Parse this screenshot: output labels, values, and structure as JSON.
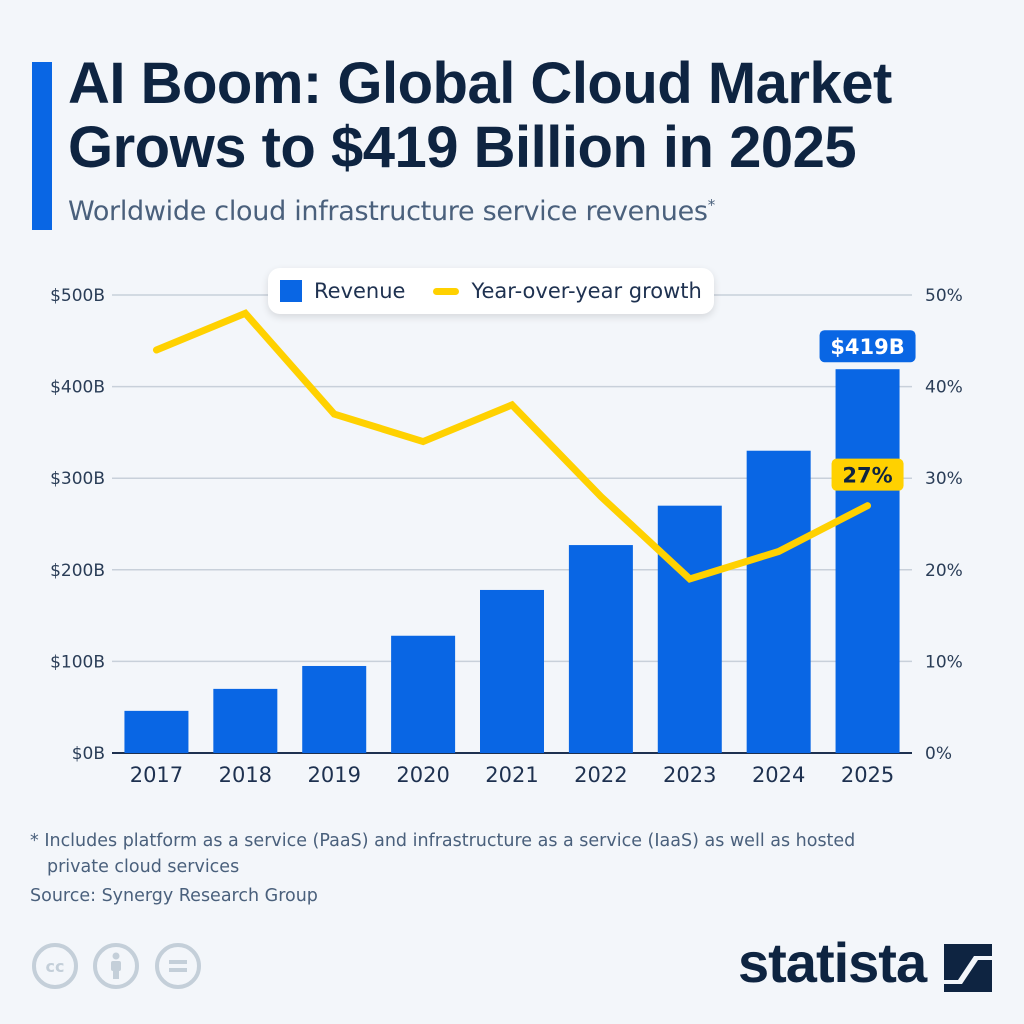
{
  "header": {
    "title_line1": "AI Boom: Global Cloud Market",
    "title_line2": "Grows to $419 Billion in 2025",
    "subtitle": "Worldwide cloud infrastructure service revenues",
    "subtitle_mark": "*"
  },
  "chart_data": {
    "type": "bar+line",
    "categories": [
      "2017",
      "2018",
      "2019",
      "2020",
      "2021",
      "2022",
      "2023",
      "2024",
      "2025"
    ],
    "series": [
      {
        "name": "Revenue",
        "type": "bar",
        "axis": "left",
        "unit": "$B",
        "color": "#0966e4",
        "values": [
          46,
          70,
          95,
          128,
          178,
          227,
          270,
          330,
          419
        ]
      },
      {
        "name": "Year-over-year growth",
        "type": "line",
        "axis": "right",
        "unit": "%",
        "color": "#ffd100",
        "values": [
          44,
          48,
          37,
          34,
          38,
          28,
          19,
          22,
          27
        ]
      }
    ],
    "left_axis": {
      "ylim": [
        0,
        500
      ],
      "ticks": [
        "$0B",
        "$100B",
        "$200B",
        "$300B",
        "$400B",
        "$500B"
      ]
    },
    "right_axis": {
      "ylim": [
        0,
        50
      ],
      "ticks": [
        "0%",
        "10%",
        "20%",
        "30%",
        "40%",
        "50%"
      ]
    },
    "annotations": {
      "bar_label": "$419B",
      "line_label": "27%"
    },
    "grid": true,
    "legend": "top-center"
  },
  "footer": {
    "note_line1": "* Includes platform as a service (PaaS) and infrastructure as a service (IaaS) as well as hosted",
    "note_line2": "private cloud services",
    "source": "Source: Synergy Research Group",
    "license_icons": [
      "cc-icon",
      "by-attribution-icon",
      "no-derivatives-icon"
    ],
    "license_cc": "cc",
    "brand": "statista"
  }
}
